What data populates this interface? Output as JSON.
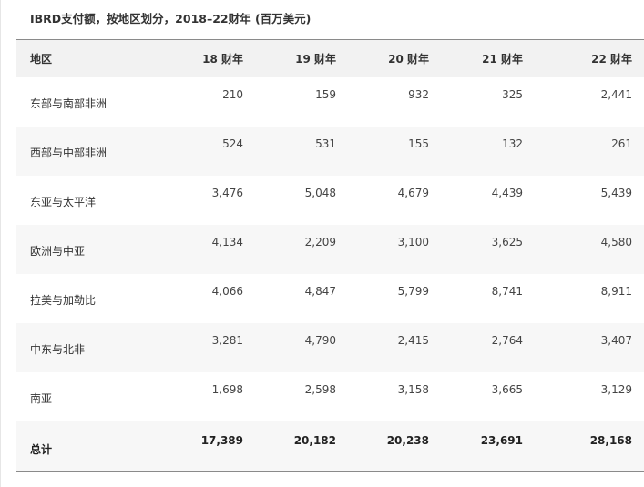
{
  "caption": "IBRD支付额，按地区划分，2018–22财年 (百万美元)",
  "table": {
    "headers": [
      "地区",
      "18 财年",
      "19 财年",
      "20 财年",
      "21 财年",
      "22 财年"
    ],
    "rows": [
      {
        "region": "东部与南部非洲",
        "values": [
          "210",
          "159",
          "932",
          "325",
          "2,441"
        ]
      },
      {
        "region": "西部与中部非洲",
        "values": [
          "524",
          "531",
          "155",
          "132",
          "261"
        ]
      },
      {
        "region": "东亚与太平洋",
        "values": [
          "3,476",
          "5,048",
          "4,679",
          "4,439",
          "5,439"
        ]
      },
      {
        "region": "欧洲与中亚",
        "values": [
          "4,134",
          "2,209",
          "3,100",
          "3,625",
          "4,580"
        ]
      },
      {
        "region": "拉美与加勒比",
        "values": [
          "4,066",
          "4,847",
          "5,799",
          "8,741",
          "8,911"
        ]
      },
      {
        "region": "中东与北非",
        "values": [
          "3,281",
          "4,790",
          "2,415",
          "2,764",
          "3,407"
        ]
      },
      {
        "region": "南亚",
        "values": [
          "1,698",
          "2,598",
          "3,158",
          "3,665",
          "3,129"
        ]
      }
    ],
    "total": {
      "region": "总计",
      "values": [
        "17,389",
        "20,182",
        "20,238",
        "23,691",
        "28,168"
      ]
    }
  }
}
